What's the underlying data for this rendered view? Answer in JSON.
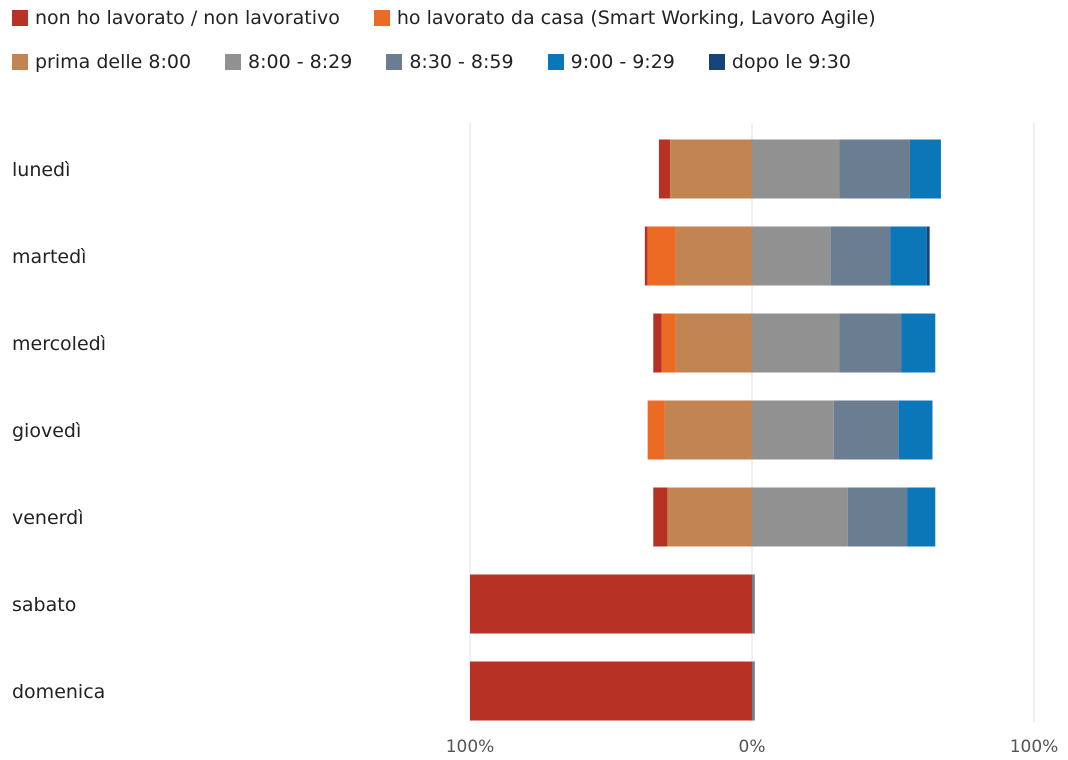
{
  "chart_data": {
    "type": "bar",
    "orientation": "horizontal",
    "stacked": true,
    "diverging": true,
    "categories": [
      "lunedì",
      "martedì",
      "mercoledì",
      "giovedì",
      "venerdì",
      "sabato",
      "domenica"
    ],
    "negative_series": [
      "non ho lavorato / non lavorativo",
      "ho lavorato da casa (Smart Working, Lavoro Agile)",
      "prima delle 8:00"
    ],
    "series": [
      {
        "name": "non ho lavorato / non lavorativo",
        "color": "#b73224",
        "values": [
          4,
          1,
          3,
          0,
          5,
          100,
          100
        ]
      },
      {
        "name": "ho lavorato da casa (Smart Working, Lavoro Agile)",
        "color": "#ec6b24",
        "values": [
          0,
          10,
          5,
          6,
          0,
          0,
          0
        ]
      },
      {
        "name": "prima delle 8:00",
        "color": "#c18452",
        "values": [
          29,
          27,
          27,
          31,
          30,
          0,
          0
        ]
      },
      {
        "name": "8:00 - 8:29",
        "color": "#919191",
        "values": [
          31,
          28,
          31,
          29,
          34,
          0,
          0
        ]
      },
      {
        "name": "8:30 - 8:59",
        "color": "#6b7e91",
        "values": [
          25,
          21,
          22,
          23,
          21,
          1,
          1
        ]
      },
      {
        "name": "9:00 - 9:29",
        "color": "#0c77b8",
        "values": [
          11,
          13,
          12,
          12,
          10,
          0,
          0
        ]
      },
      {
        "name": "dopo le 9:30",
        "color": "#17437a",
        "values": [
          0,
          1,
          0,
          0,
          0,
          0,
          0
        ]
      }
    ],
    "x_ticks": [
      "100%",
      "0%",
      "100%"
    ],
    "xlim": [
      -100,
      100
    ],
    "title": "",
    "xlabel": "",
    "ylabel": "",
    "grid": true,
    "legend_position": "top"
  }
}
